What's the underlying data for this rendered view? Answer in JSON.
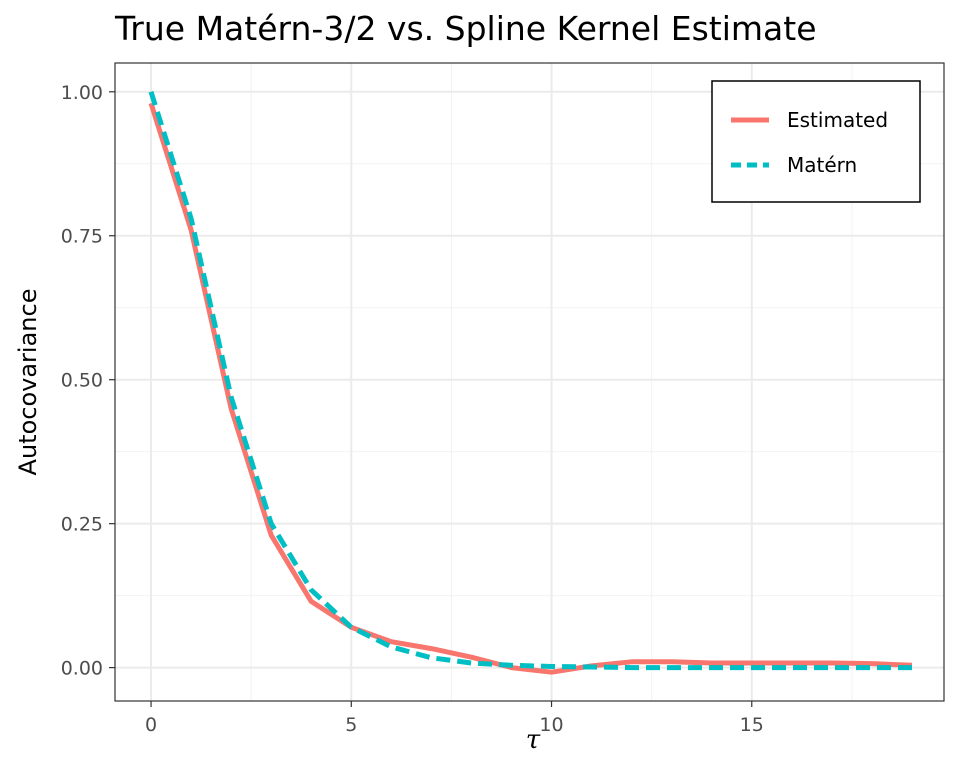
{
  "chart_data": {
    "type": "line",
    "title": "True Matérn-3/2 vs. Spline Kernel Estimate",
    "xlabel": "τ",
    "ylabel": "Autocovariance",
    "xlim": [
      -0.9,
      19.8
    ],
    "ylim": [
      -0.058,
      1.05
    ],
    "x_ticks": [
      0,
      5,
      10,
      15
    ],
    "x_tick_labels": [
      "0",
      "5",
      "10",
      "15"
    ],
    "y_ticks": [
      0,
      0.25,
      0.5,
      0.75,
      1.0
    ],
    "y_tick_labels": [
      "0.00",
      "0.25",
      "0.50",
      "0.75",
      "1.00"
    ],
    "grid": true,
    "legend_position": "top-right",
    "x": [
      0,
      1,
      2,
      3,
      4,
      5,
      6,
      7,
      8,
      9,
      10,
      11,
      12,
      13,
      14,
      15,
      16,
      17,
      18,
      19
    ],
    "series": [
      {
        "name": "Estimated",
        "color": "#F8766D",
        "line_style": "solid",
        "values": [
          0.98,
          0.76,
          0.45,
          0.23,
          0.115,
          0.07,
          0.045,
          0.033,
          0.018,
          0.0,
          -0.008,
          0.003,
          0.01,
          0.01,
          0.008,
          0.008,
          0.008,
          0.008,
          0.007,
          0.004
        ]
      },
      {
        "name": "Matérn",
        "color": "#00BFC4",
        "line_style": "dashed",
        "values": [
          1.0,
          0.78,
          0.47,
          0.25,
          0.135,
          0.07,
          0.036,
          0.017,
          0.008,
          0.004,
          0.002,
          0.001,
          0.0,
          0.0,
          0.0,
          0.0,
          0.0,
          0.0,
          0.0,
          0.0
        ]
      }
    ]
  }
}
